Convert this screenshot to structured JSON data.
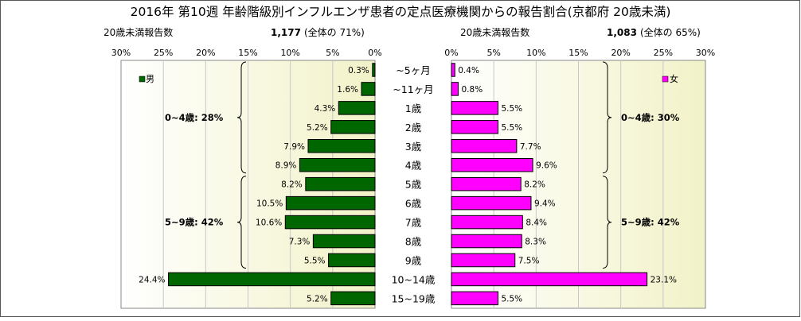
{
  "title": "2016年 第10週 年齢階級別インフルエンザ患者の定点医療機関からの報告割合(京都府 20歳未満)",
  "left_header": {
    "label": "20歳未満報告数",
    "count": "1,177",
    "share": "(全体の 71%)"
  },
  "right_header": {
    "label": "20歳未満報告数",
    "count": "1,083",
    "share": "(全体の 65%)"
  },
  "colors": {
    "male": "#006600",
    "female": "#ff00ff",
    "plot_bg_light": "#ffffff",
    "plot_bg_dark": "#f2f2c8",
    "grid": "#c8c8c8"
  },
  "chart_data": {
    "type": "bar",
    "orientation": "horizontal-butterfly",
    "categories": [
      "~5ヶ月",
      "~11ヶ月",
      "1歳",
      "2歳",
      "3歳",
      "4歳",
      "5歳",
      "6歳",
      "7歳",
      "8歳",
      "9歳",
      "10~14歳",
      "15~19歳"
    ],
    "series": [
      {
        "name": "男",
        "side": "left",
        "values": [
          0.3,
          1.6,
          4.3,
          5.2,
          7.9,
          8.9,
          8.2,
          10.5,
          10.6,
          7.3,
          5.5,
          24.4,
          5.2
        ],
        "labels": [
          "0.3%",
          "1.6%",
          "4.3%",
          "5.2%",
          "7.9%",
          "8.9%",
          "8.2%",
          "10.5%",
          "10.6%",
          "7.3%",
          "5.5%",
          "24.4%",
          "5.2%"
        ]
      },
      {
        "name": "女",
        "side": "right",
        "values": [
          0.4,
          0.8,
          5.5,
          5.5,
          7.7,
          9.6,
          8.2,
          9.4,
          8.4,
          8.3,
          7.5,
          23.1,
          5.5
        ],
        "labels": [
          "0.4%",
          "0.8%",
          "5.5%",
          "5.5%",
          "7.7%",
          "9.6%",
          "8.2%",
          "9.4%",
          "8.4%",
          "8.3%",
          "7.5%",
          "23.1%",
          "5.5%"
        ]
      }
    ],
    "xlim": [
      0,
      30
    ],
    "left_ticks": [
      "30%",
      "25%",
      "20%",
      "15%",
      "10%",
      "5%",
      "0%"
    ],
    "right_ticks": [
      "0%",
      "5%",
      "10%",
      "15%",
      "20%",
      "25%",
      "30%"
    ],
    "annotations": {
      "left": [
        {
          "text": "0~4歳: 28%",
          "from": 0,
          "to": 5
        },
        {
          "text": "5~9歳: 42%",
          "from": 6,
          "to": 10
        }
      ],
      "right": [
        {
          "text": "0~4歳: 30%",
          "from": 0,
          "to": 5
        },
        {
          "text": "5~9歳: 42%",
          "from": 6,
          "to": 10
        }
      ]
    },
    "grid": true,
    "legend": {
      "left": "top-left",
      "right": "top-right"
    }
  }
}
